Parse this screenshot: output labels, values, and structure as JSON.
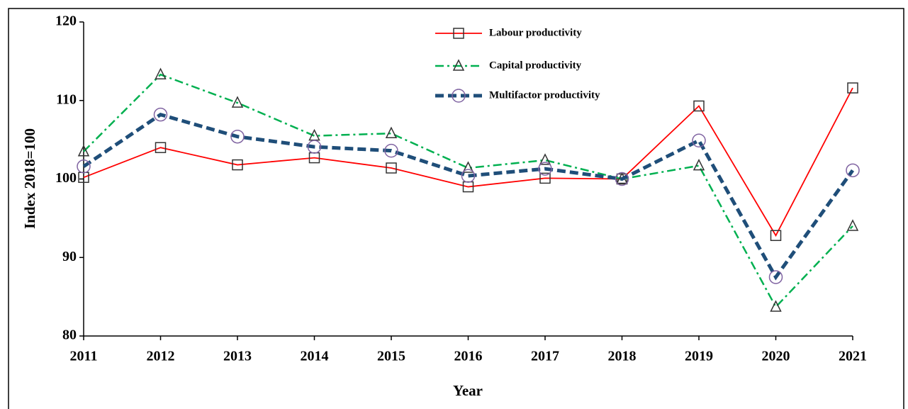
{
  "chart_data": {
    "type": "line",
    "x_label": "Year",
    "y_label": "Index 2018=100",
    "categories": [
      "2011",
      "2012",
      "2013",
      "2014",
      "2015",
      "2016",
      "2017",
      "2018",
      "2019",
      "2020",
      "2021"
    ],
    "series": [
      {
        "name": "Labour productivity",
        "color": "#ff0000",
        "marker": "square",
        "dash": "solid",
        "values": [
          100.2,
          104.0,
          101.8,
          102.7,
          101.4,
          99.0,
          100.1,
          100.0,
          109.3,
          92.8,
          111.6
        ]
      },
      {
        "name": "Capital productivity",
        "color": "#00b050",
        "marker": "triangle",
        "dash": "dashdot",
        "values": [
          103.5,
          113.3,
          109.7,
          105.5,
          105.8,
          101.4,
          102.4,
          100.0,
          101.7,
          83.7,
          94.0
        ]
      },
      {
        "name": "Multifactor productivity",
        "color": "#1f4e79",
        "marker": "circle",
        "dash": "dash",
        "values": [
          101.6,
          108.2,
          105.4,
          104.1,
          103.6,
          100.4,
          101.3,
          100.0,
          104.9,
          87.5,
          101.1
        ]
      }
    ],
    "ylim": [
      80,
      120
    ],
    "yticks": [
      80,
      90,
      100,
      110,
      120
    ],
    "grid": false,
    "legend": "top"
  }
}
